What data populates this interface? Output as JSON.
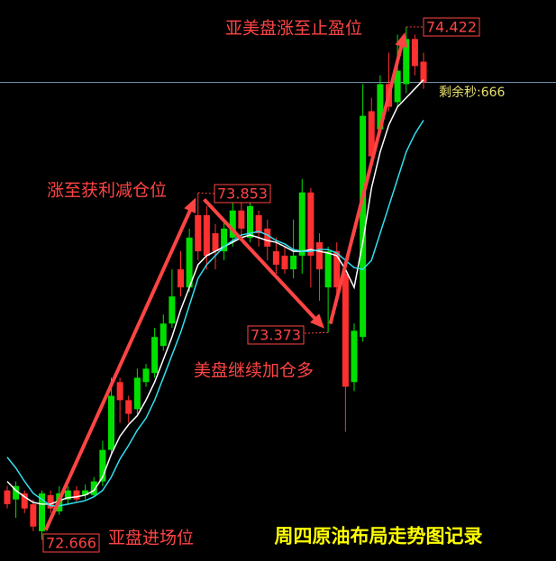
{
  "chart_data": {
    "type": "candlestick",
    "title": "周四原油布局走势图记录",
    "countdown_label": "剩余秒:666",
    "up_color": "#00e000",
    "down_color": "#ff3030",
    "annotation_color": "#ff4444",
    "open": [
      72.831,
      72.8,
      72.821,
      72.784,
      72.691,
      72.815,
      72.759,
      72.8,
      72.831,
      72.815,
      72.815,
      72.862,
      72.97,
      73.203,
      73.141,
      73.11,
      73.203,
      73.234,
      73.327,
      73.404,
      73.59,
      73.528,
      73.776,
      73.776,
      73.714,
      73.652,
      73.699,
      73.792,
      73.699,
      73.776,
      73.73,
      73.652,
      73.637,
      73.59,
      73.637,
      73.854,
      73.683,
      73.528,
      73.652,
      73.575,
      73.203,
      73.358,
      74.133,
      74.071,
      74.226,
      74.164,
      74.226,
      74.381,
      74.303
    ],
    "high": [
      72.846,
      72.862,
      72.831,
      72.8,
      72.831,
      72.831,
      72.846,
      72.846,
      72.846,
      72.852,
      72.877,
      73.001,
      73.218,
      73.218,
      73.156,
      73.249,
      73.265,
      73.389,
      73.435,
      73.59,
      73.652,
      73.73,
      73.853,
      73.807,
      73.745,
      73.761,
      73.823,
      73.823,
      73.838,
      73.792,
      73.761,
      73.699,
      73.668,
      73.761,
      73.9,
      73.869,
      73.714,
      73.668,
      73.683,
      73.621,
      73.404,
      74.226,
      74.179,
      74.256,
      74.334,
      74.396,
      74.422,
      74.396,
      74.334
    ],
    "low": [
      72.769,
      72.737,
      72.753,
      72.691,
      72.666,
      72.753,
      72.747,
      72.784,
      72.79,
      72.8,
      72.809,
      72.846,
      72.955,
      73.063,
      73.063,
      73.094,
      73.187,
      73.218,
      73.311,
      73.389,
      73.497,
      73.513,
      73.621,
      73.59,
      73.59,
      73.621,
      73.668,
      73.699,
      73.683,
      73.668,
      73.621,
      73.575,
      73.575,
      73.559,
      73.575,
      73.528,
      73.482,
      73.373,
      73.497,
      73.032,
      73.172,
      73.342,
      73.947,
      74.055,
      74.133,
      74.148,
      74.195,
      74.256,
      74.21
    ],
    "close": [
      72.784,
      72.846,
      72.769,
      72.707,
      72.821,
      72.769,
      72.821,
      72.831,
      72.8,
      72.831,
      72.862,
      72.97,
      73.156,
      73.141,
      73.094,
      73.218,
      73.249,
      73.358,
      73.404,
      73.497,
      73.528,
      73.699,
      73.652,
      73.637,
      73.652,
      73.73,
      73.792,
      73.73,
      73.807,
      73.714,
      73.668,
      73.606,
      73.59,
      73.637,
      73.854,
      73.637,
      73.59,
      73.652,
      73.528,
      73.187,
      73.379,
      74.117,
      73.978,
      74.226,
      74.148,
      74.272,
      74.381,
      74.288,
      74.232
    ],
    "moving_averages": [
      {
        "color": "#ffffff",
        "values": [
          72.862,
          72.831,
          72.809,
          72.79,
          72.784,
          72.784,
          72.796,
          72.806,
          72.809,
          72.815,
          72.831,
          72.877,
          72.955,
          73.017,
          73.057,
          73.088,
          73.141,
          73.203,
          73.28,
          73.358,
          73.451,
          73.528,
          73.606,
          73.637,
          73.652,
          73.668,
          73.683,
          73.699,
          73.708,
          73.699,
          73.689,
          73.683,
          73.668,
          73.652,
          73.652,
          73.658,
          73.652,
          73.646,
          73.637,
          73.59,
          73.528,
          73.683,
          73.869,
          73.993,
          74.086,
          74.148,
          74.179,
          74.21,
          74.241
        ]
      },
      {
        "color": "#30e0f0",
        "values": [
          72.945,
          72.908,
          72.862,
          72.821,
          72.8,
          72.778,
          72.778,
          72.784,
          72.79,
          72.796,
          72.809,
          72.831,
          72.877,
          72.939,
          72.986,
          73.038,
          73.079,
          73.141,
          73.218,
          73.296,
          73.373,
          73.466,
          73.559,
          73.606,
          73.637,
          73.668,
          73.689,
          73.708,
          73.714,
          73.72,
          73.708,
          73.689,
          73.677,
          73.658,
          73.652,
          73.652,
          73.658,
          73.658,
          73.646,
          73.621,
          73.596,
          73.59,
          73.621,
          73.714,
          73.807,
          73.9,
          73.993,
          74.055,
          74.102
        ]
      }
    ],
    "annotations": [
      {
        "text": "亚盘进场位",
        "price": 72.666
      },
      {
        "text": "涨至获利减仓位",
        "price": 73.853
      },
      {
        "text": "美盘继续加仓多",
        "price": 73.373
      },
      {
        "text": "亚美盘涨至止盈位",
        "price": 74.422
      }
    ]
  }
}
